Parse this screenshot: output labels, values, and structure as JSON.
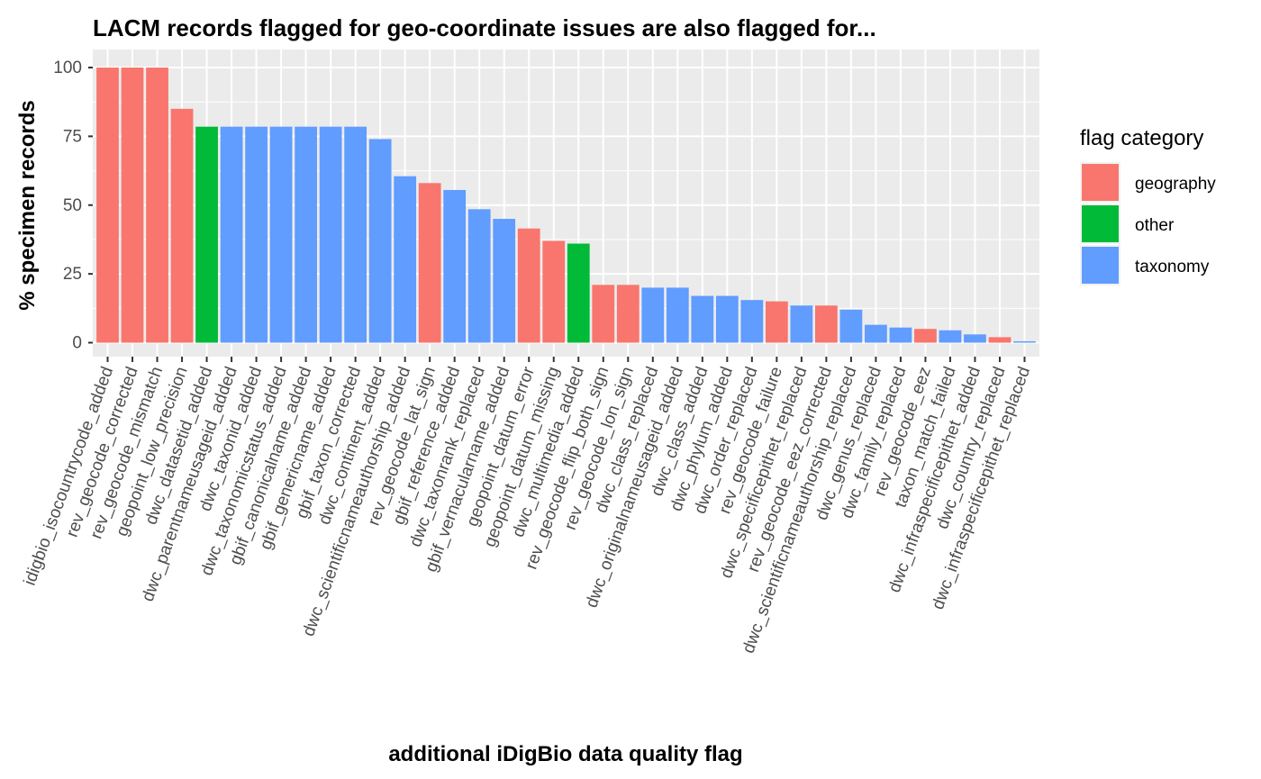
{
  "chart_data": {
    "type": "bar",
    "title": "LACM records flagged for geo-coordinate issues are also flagged for...",
    "xlabel": "additional iDigBio data quality flag",
    "ylabel": "% specimen records",
    "ylim": [
      0,
      105
    ],
    "yticks": [
      0,
      25,
      50,
      75,
      100
    ],
    "grid": true,
    "legend": {
      "title": "flag category",
      "position": "right",
      "entries": [
        {
          "name": "geography",
          "color": "#F8766D"
        },
        {
          "name": "other",
          "color": "#00BA38"
        },
        {
          "name": "taxonomy",
          "color": "#619CFF"
        }
      ]
    },
    "categories": [
      "idigbio_isocountrycode_added",
      "rev_geocode_corrected",
      "rev_geocode_mismatch",
      "geopoint_low_precision",
      "dwc_datasetid_added",
      "dwc_parentnameusageid_added",
      "dwc_taxonid_added",
      "dwc_taxonomicstatus_added",
      "gbif_canonicalname_added",
      "gbif_genericname_added",
      "gbif_taxon_corrected",
      "dwc_continent_added",
      "dwc_scientificnameauthorship_added",
      "rev_geocode_lat_sign",
      "gbif_reference_added",
      "dwc_taxonrank_replaced",
      "gbif_vernacularname_added",
      "geopoint_datum_error",
      "geopoint_datum_missing",
      "dwc_multimedia_added",
      "rev_geocode_flip_both_sign",
      "rev_geocode_lon_sign",
      "dwc_class_replaced",
      "dwc_originalnameusageid_added",
      "dwc_class_added",
      "dwc_phylum_added",
      "dwc_order_replaced",
      "rev_geocode_failure",
      "dwc_specificepithet_replaced",
      "rev_geocode_eez_corrected",
      "dwc_scientificnameauthorship_replaced",
      "dwc_genus_replaced",
      "dwc_family_replaced",
      "rev_geocode_eez",
      "taxon_match_failed",
      "dwc_infraspecificepithet_added",
      "dwc_country_replaced",
      "dwc_infraspecificepithet_replaced"
    ],
    "values": [
      100,
      100,
      100,
      85,
      78.5,
      78.5,
      78.5,
      78.5,
      78.5,
      78.5,
      78.5,
      74,
      60.5,
      58,
      55.5,
      48.5,
      45,
      41.5,
      37,
      36,
      21,
      21,
      20,
      20,
      17,
      17,
      15.5,
      15,
      13.5,
      13.5,
      12,
      6.5,
      5.5,
      5,
      4.5,
      3,
      2,
      0.5
    ],
    "groups": [
      "geography",
      "geography",
      "geography",
      "geography",
      "other",
      "taxonomy",
      "taxonomy",
      "taxonomy",
      "taxonomy",
      "taxonomy",
      "taxonomy",
      "taxonomy",
      "taxonomy",
      "geography",
      "taxonomy",
      "taxonomy",
      "taxonomy",
      "geography",
      "geography",
      "other",
      "geography",
      "geography",
      "taxonomy",
      "taxonomy",
      "taxonomy",
      "taxonomy",
      "taxonomy",
      "geography",
      "taxonomy",
      "geography",
      "taxonomy",
      "taxonomy",
      "taxonomy",
      "geography",
      "taxonomy",
      "taxonomy",
      "geography",
      "taxonomy"
    ]
  },
  "colors": {
    "panel_background": "#EBEBEB",
    "gridline": "#FFFFFF",
    "axis_text": "#4D4D4D",
    "tick": "#333333"
  }
}
